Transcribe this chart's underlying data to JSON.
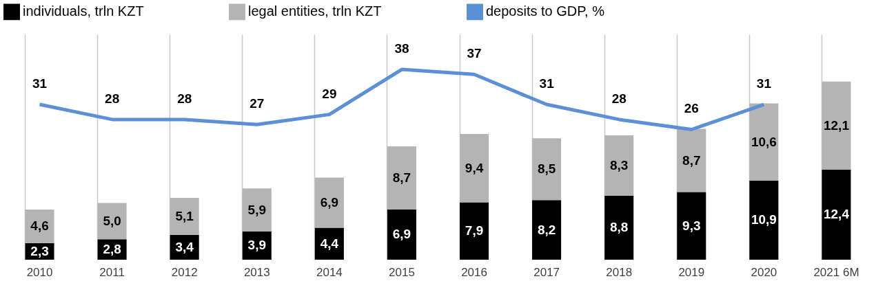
{
  "chart_data": {
    "type": "bar",
    "stacked": true,
    "categories": [
      "2010",
      "2011",
      "2012",
      "2013",
      "2014",
      "2015",
      "2016",
      "2017",
      "2018",
      "2019",
      "2020",
      "2021 6M"
    ],
    "series": [
      {
        "name": "individuals, trln KZT",
        "color": "#000000",
        "values": [
          2.3,
          2.8,
          3.4,
          3.9,
          4.4,
          6.9,
          7.9,
          8.2,
          8.8,
          9.3,
          10.9,
          12.4
        ],
        "value_labels": [
          "2,3",
          "2,8",
          "3,4",
          "3,9",
          "4,4",
          "6,9",
          "7,9",
          "8,2",
          "8,8",
          "9,3",
          "10,9",
          "12,4"
        ]
      },
      {
        "name": "legal entities, trln KZT",
        "color": "#b4b4b4",
        "values": [
          4.6,
          5.0,
          5.1,
          5.9,
          6.9,
          8.7,
          9.4,
          8.5,
          8.3,
          8.7,
          10.6,
          12.1
        ],
        "value_labels": [
          "4,6",
          "5,0",
          "5,1",
          "5,9",
          "6,9",
          "8,7",
          "9,4",
          "8,5",
          "8,3",
          "8,7",
          "10,6",
          "12,1"
        ]
      },
      {
        "name": "deposits to GDP, %",
        "type": "line",
        "axis": "y2",
        "color": "#5b8fd6",
        "values": [
          31,
          28,
          28,
          27,
          29,
          38,
          37,
          31,
          28,
          26,
          31,
          null
        ],
        "value_labels": [
          "31",
          "28",
          "28",
          "27",
          "29",
          "38",
          "37",
          "31",
          "28",
          "26",
          "31",
          null
        ]
      }
    ],
    "ylim": [
      0,
      31
    ],
    "y2lim": [
      0,
      45
    ],
    "tick_labels": "x",
    "grid": "x",
    "legend": "top"
  }
}
